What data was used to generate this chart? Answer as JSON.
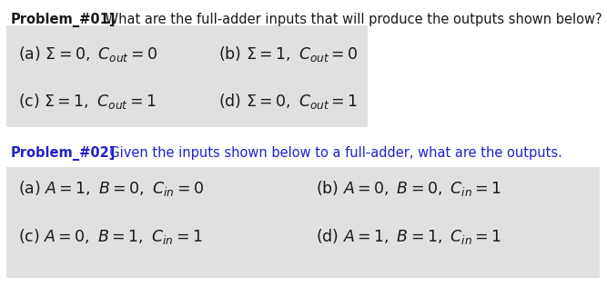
{
  "bg_color": "#ffffff",
  "box_color": "#e0e0e0",
  "prob1_bold": "Problem_#01]",
  "prob1_text": " What are the full-adder inputs that will produce the outputs shown below?",
  "prob2_bold": "Problem_#02]",
  "prob2_text": "  Given the inputs shown below to a full-adder, what are the outputs.",
  "p1_row1_left": "(a) $\\Sigma = 0,\\ C_{out} = 0$",
  "p1_row1_right": "(b) $\\Sigma = 1,\\ C_{out} = 0$",
  "p1_row2_left": "(c) $\\Sigma = 1,\\ C_{out} = 1$",
  "p1_row2_right": "(d) $\\Sigma = 0,\\ C_{out} = 1$",
  "p2_row1_left": "(a) $A = 1,\\ B = 0,\\ C_{in} = 0$",
  "p2_row1_right": "(b) $A = 0,\\ B = 0,\\ C_{in} = 1$",
  "p2_row2_left": "(c) $A = 0,\\ B = 1,\\ C_{in} = 1$",
  "p2_row2_right": "(d) $A = 1,\\ B = 1,\\ C_{in} = 1$",
  "header_fontsize": 10.5,
  "content_fontsize": 12.5,
  "prob2_color": "#2222cc",
  "text_color": "#1a1a1a"
}
